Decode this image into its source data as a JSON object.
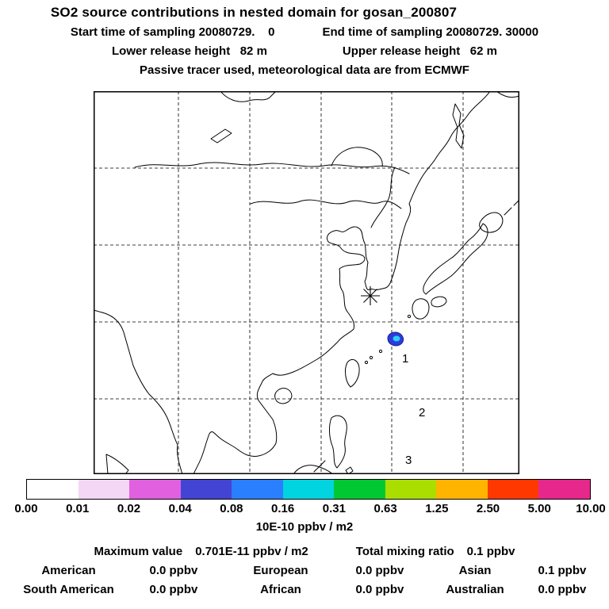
{
  "header": {
    "title": "SO2 source contributions in nested domain for gosan_200807",
    "sampling_start": "Start time of sampling 20080729.    0",
    "sampling_end": "End time of sampling 20080729. 30000",
    "lower_release": "Lower release height   82 m",
    "upper_release": "Upper release height   62 m",
    "tracer_note": "Passive tracer used, meteorological data are from ECMWF"
  },
  "map": {
    "station_marker": "receptor-asterisk",
    "area_labels": [
      "1",
      "2",
      "3"
    ],
    "plume_colors": [
      "#2a3cdc",
      "#2ad2f0"
    ]
  },
  "colorbar": {
    "levels": [
      "0.00",
      "0.01",
      "0.02",
      "0.04",
      "0.08",
      "0.16",
      "0.31",
      "0.63",
      "1.25",
      "2.50",
      "5.00",
      "10.00"
    ],
    "segment_colors": [
      "#ffffff",
      "#f4d7f4",
      "#e060e0",
      "#4444d4",
      "#2a7fff",
      "#00d4e0",
      "#00c832",
      "#aade00",
      "#ffb400",
      "#ff3800",
      "#e6288c"
    ],
    "units_label": "10E-10 ppbv / m2"
  },
  "stats": {
    "summary": [
      {
        "label": "Maximum value",
        "value": "0.701E-11 ppbv / m2"
      },
      {
        "label": "Total mixing ratio",
        "value": "0.1 ppbv"
      }
    ],
    "contributions": [
      {
        "label": "American",
        "value": "0.0 ppbv"
      },
      {
        "label": "European",
        "value": "0.0 ppbv"
      },
      {
        "label": "Asian",
        "value": "0.1 ppbv"
      },
      {
        "label": "South American",
        "value": "0.0 ppbv"
      },
      {
        "label": "African",
        "value": "0.0 ppbv"
      },
      {
        "label": "Australian",
        "value": "0.0 ppbv"
      }
    ]
  },
  "chart_data": {
    "type": "heatmap",
    "title": "SO2 source contributions in nested domain for gosan_200807",
    "receptor": "gosan",
    "sampling": {
      "start": "20080729. 0",
      "end": "20080729. 30000"
    },
    "release_height_m": {
      "lower": 82,
      "upper": 62
    },
    "tracer": "passive",
    "meteorology": "ECMWF",
    "colorbar_levels": [
      0.0,
      0.01,
      0.02,
      0.04,
      0.08,
      0.16,
      0.31,
      0.63,
      1.25,
      2.5,
      5.0,
      10.0
    ],
    "colorbar_units": "10E-10 ppbv / m2",
    "maximum_value": "0.701E-11 ppbv / m2",
    "total_mixing_ratio": "0.1 ppbv",
    "regional_contributions_ppbv": {
      "American": 0.0,
      "European": 0.0,
      "Asian": 0.1,
      "South American": 0.0,
      "African": 0.0,
      "Australian": 0.0
    },
    "map_area_labels": [
      "1",
      "2",
      "3"
    ],
    "plume_note": "small blue-cyan contribution patch southwest of receptor marker"
  }
}
